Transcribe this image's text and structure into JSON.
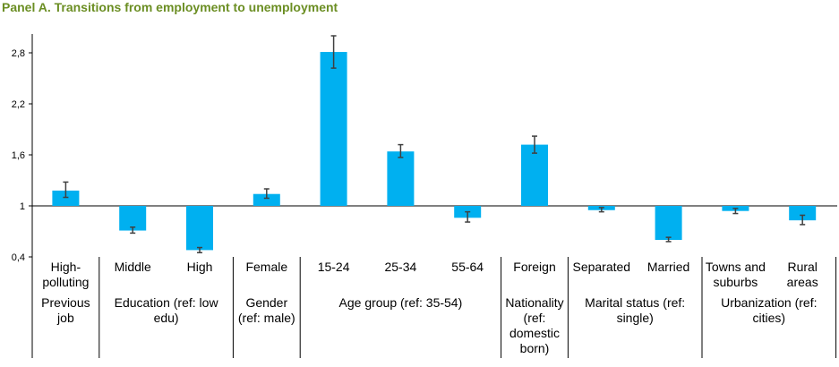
{
  "title": "Panel A. Transitions from employment to unemployment",
  "chart_data": {
    "type": "bar",
    "title": "Panel A. Transitions from employment to unemployment",
    "baseline": 1,
    "ylim": [
      0.4,
      3.0
    ],
    "yticks": [
      "0,4",
      "1",
      "1,6",
      "2,2",
      "2,8"
    ],
    "ytick_values": [
      0.4,
      1.0,
      1.6,
      2.2,
      2.8
    ],
    "grid": false,
    "bar_color": "#00b0f0",
    "error_bar_color": "#404040",
    "categories": [
      "High-polluting",
      "Middle",
      "High",
      "Female",
      "15-24",
      "25-34",
      "55-64",
      "Foreign",
      "Separated",
      "Married",
      "Towns and suburbs",
      "Rural areas"
    ],
    "values": [
      1.18,
      0.71,
      0.48,
      1.14,
      2.81,
      1.64,
      0.86,
      1.72,
      0.95,
      0.6,
      0.94,
      0.83
    ],
    "error_low": [
      1.1,
      0.68,
      0.45,
      1.09,
      2.62,
      1.57,
      0.81,
      1.62,
      0.93,
      0.58,
      0.91,
      0.78
    ],
    "error_high": [
      1.28,
      0.75,
      0.51,
      1.2,
      3.0,
      1.72,
      0.93,
      1.82,
      0.98,
      0.63,
      0.97,
      0.89
    ],
    "category_labels": [
      [
        "High-",
        "polluting"
      ],
      [
        "Middle"
      ],
      [
        "High"
      ],
      [
        "Female"
      ],
      [
        "15-24"
      ],
      [
        "25-34"
      ],
      [
        "55-64"
      ],
      [
        "Foreign"
      ],
      [
        "Separated"
      ],
      [
        "Married"
      ],
      [
        "Towns and",
        "suburbs"
      ],
      [
        "Rural",
        "areas"
      ]
    ],
    "groups": [
      {
        "lines": [
          "Previous",
          "job"
        ],
        "start": 0,
        "end": 0
      },
      {
        "lines": [
          "Education (ref: low",
          "edu)"
        ],
        "start": 1,
        "end": 2
      },
      {
        "lines": [
          "Gender",
          "(ref: male)"
        ],
        "start": 3,
        "end": 3
      },
      {
        "lines": [
          "Age group (ref: 35-54)"
        ],
        "start": 4,
        "end": 6
      },
      {
        "lines": [
          "Nationality",
          "(ref:",
          "domestic",
          "born)"
        ],
        "start": 7,
        "end": 7
      },
      {
        "lines": [
          "Marital status (ref:",
          "single)"
        ],
        "start": 8,
        "end": 9
      },
      {
        "lines": [
          "Urbanization (ref:",
          "cities)"
        ],
        "start": 10,
        "end": 11
      }
    ]
  }
}
